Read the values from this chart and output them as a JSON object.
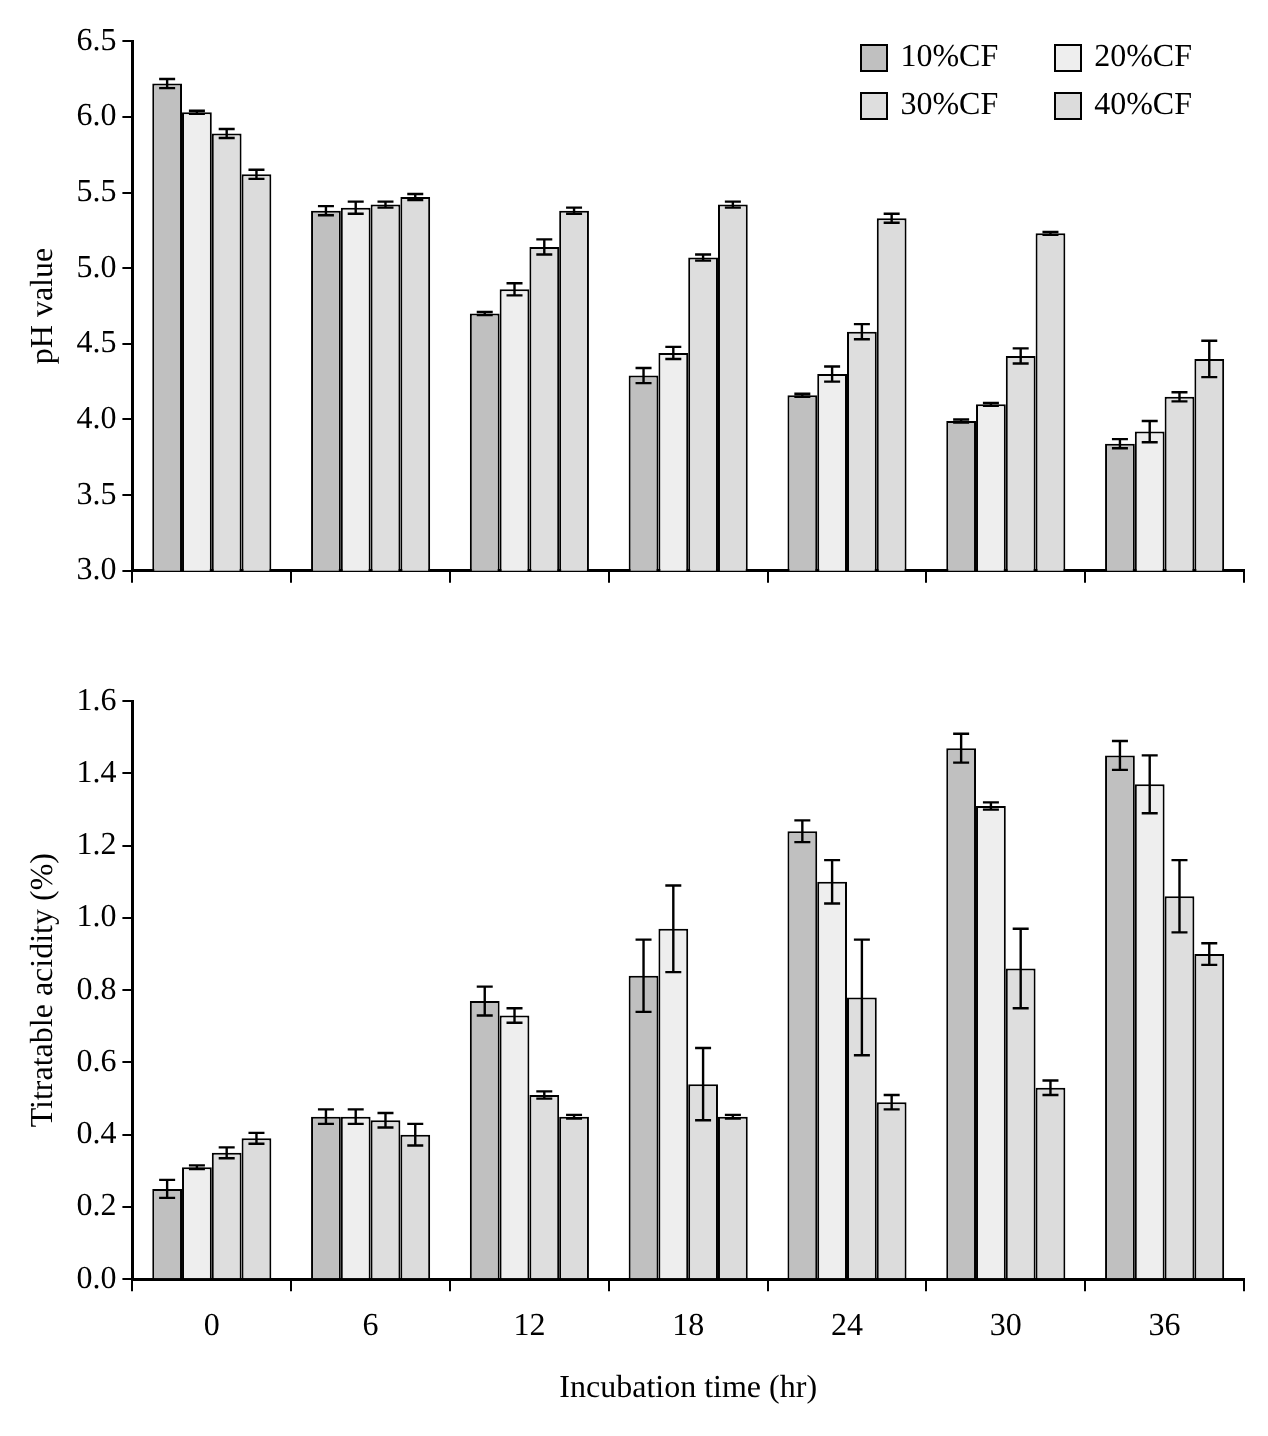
{
  "chart_data": [
    {
      "type": "bar",
      "ylabel": "pH value",
      "categories": [
        "0",
        "6",
        "12",
        "18",
        "24",
        "30",
        "36"
      ],
      "ylim": [
        3,
        6.5
      ],
      "yticks": [
        {
          "value": 3,
          "label": "3.0"
        },
        {
          "value": 3.5,
          "label": "3.5"
        },
        {
          "value": 4,
          "label": "4.0"
        },
        {
          "value": 4.5,
          "label": "4.5"
        },
        {
          "value": 5,
          "label": "5.0"
        },
        {
          "value": 5.5,
          "label": "5.5"
        },
        {
          "value": 6,
          "label": "6.0"
        },
        {
          "value": 6.5,
          "label": "6.5"
        }
      ],
      "tick_labels": "y",
      "legend": "top right",
      "grid": false,
      "series": [
        {
          "name": "10%CF",
          "color": "#c0c0c0",
          "values": [
            6.22,
            5.38,
            4.7,
            4.29,
            4.16,
            3.99,
            3.84
          ],
          "errors": [
            0.03,
            0.03,
            0.01,
            0.05,
            0.01,
            0.01,
            0.03
          ]
        },
        {
          "name": "20%CF",
          "color": "#eeeeee",
          "values": [
            6.03,
            5.4,
            4.86,
            4.44,
            4.3,
            4.1,
            3.92
          ],
          "errors": [
            0.01,
            0.04,
            0.04,
            0.04,
            0.05,
            0.01,
            0.07
          ]
        },
        {
          "name": "30%CF",
          "color": "#dedede",
          "values": [
            5.89,
            5.42,
            5.14,
            5.07,
            4.58,
            4.42,
            4.15
          ],
          "errors": [
            0.03,
            0.02,
            0.05,
            0.02,
            0.05,
            0.05,
            0.03
          ]
        },
        {
          "name": "40%CF",
          "color": "#dcdcdc",
          "values": [
            5.62,
            5.47,
            5.38,
            5.42,
            5.33,
            5.23,
            4.4
          ],
          "errors": [
            0.03,
            0.02,
            0.02,
            0.02,
            0.03,
            0.01,
            0.12
          ]
        }
      ]
    },
    {
      "type": "bar",
      "xlabel": "Incubation time (hr)",
      "ylabel": "Titratable acidity (%)",
      "categories": [
        "0",
        "6",
        "12",
        "18",
        "24",
        "30",
        "36"
      ],
      "ylim": [
        0,
        1.6
      ],
      "yticks": [
        {
          "value": 0,
          "label": "0.0"
        },
        {
          "value": 0.2,
          "label": "0.2"
        },
        {
          "value": 0.4,
          "label": "0.4"
        },
        {
          "value": 0.6,
          "label": "0.6"
        },
        {
          "value": 0.8,
          "label": "0.8"
        },
        {
          "value": 1,
          "label": "1.0"
        },
        {
          "value": 1.2,
          "label": "1.2"
        },
        {
          "value": 1.4,
          "label": "1.4"
        },
        {
          "value": 1.6,
          "label": "1.6"
        }
      ],
      "grid": false,
      "series": [
        {
          "color": "#c0c0c0",
          "values": [
            0.25,
            0.45,
            0.77,
            0.84,
            1.24,
            1.47,
            1.45
          ],
          "errors": [
            0.025,
            0.02,
            0.04,
            0.1,
            0.03,
            0.04,
            0.04
          ]
        },
        {
          "color": "#eeeeee",
          "values": [
            0.31,
            0.45,
            0.73,
            0.97,
            1.1,
            1.31,
            1.37
          ],
          "errors": [
            0.005,
            0.02,
            0.02,
            0.12,
            0.06,
            0.01,
            0.08
          ]
        },
        {
          "color": "#dedede",
          "values": [
            0.35,
            0.44,
            0.51,
            0.54,
            0.78,
            0.86,
            1.06
          ],
          "errors": [
            0.015,
            0.02,
            0.01,
            0.1,
            0.16,
            0.11,
            0.1
          ]
        },
        {
          "color": "#dcdcdc",
          "values": [
            0.39,
            0.4,
            0.45,
            0.45,
            0.49,
            0.53,
            0.9
          ],
          "errors": [
            0.015,
            0.03,
            0.005,
            0.005,
            0.02,
            0.02,
            0.03
          ]
        }
      ]
    }
  ]
}
